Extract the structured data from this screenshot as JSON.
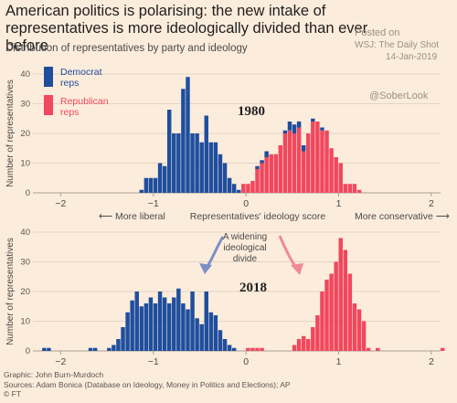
{
  "header": {
    "title": "American politics is polarising: the new intake of representatives is more ideologically divided than ever before",
    "subtitle": "Distribution of representatives by party and ideology"
  },
  "watermark": {
    "posted_lines": [
      "Posted on",
      "WSJ: The Daily Shot",
      "14-Jan-2019"
    ],
    "handle": "@SoberLook"
  },
  "footer": {
    "graphic": "Graphic: John Burn-Murdoch",
    "sources": "Sources: Adam Bonica (Database on Ideology, Money in Politics and Elections); AP",
    "credit": "© FT"
  },
  "colors": {
    "democrat": "#1f4e9e",
    "republican": "#f0485e",
    "background": "#fcecdb"
  },
  "chart_data": [
    {
      "type": "bar",
      "subtype": "stacked-histogram",
      "label": "1980",
      "ylabel": "Number of representatives",
      "xlabel": "Representatives' ideology score",
      "left_annotation": "More liberal",
      "right_annotation": "More conservative",
      "legend": [
        "Democrat reps",
        "Republican reps"
      ],
      "legend_position": "top-left",
      "xlim": [
        -2.3,
        2.1
      ],
      "ylim": [
        0,
        40
      ],
      "xticks": [
        -2,
        -1,
        0,
        1,
        2
      ],
      "yticks": [
        0,
        10,
        20,
        30,
        40
      ],
      "bin_width": 0.05,
      "bins_start": -1.15,
      "series": [
        {
          "name": "Democrat reps",
          "values": [
            1,
            5,
            5,
            5,
            10,
            9,
            28,
            20,
            20,
            35,
            39,
            20,
            20,
            17,
            26,
            17,
            17,
            13,
            10,
            5,
            3,
            1,
            0,
            0,
            0,
            1,
            1,
            2,
            0,
            0,
            0,
            1,
            3,
            3,
            2,
            2,
            0,
            1,
            0,
            1,
            0,
            0,
            0,
            0,
            0,
            0,
            0,
            0,
            0
          ]
        },
        {
          "name": "Republican reps",
          "values": [
            0,
            0,
            0,
            0,
            0,
            0,
            0,
            0,
            0,
            0,
            0,
            0,
            0,
            0,
            0,
            0,
            0,
            0,
            0,
            0,
            0,
            0,
            3,
            3,
            4,
            8,
            10,
            12,
            13,
            13,
            16,
            20,
            21,
            20,
            22,
            14,
            20,
            24,
            24,
            21,
            21,
            15,
            12,
            10,
            3,
            3,
            3,
            1,
            0
          ]
        }
      ]
    },
    {
      "type": "bar",
      "subtype": "stacked-histogram",
      "label": "2018",
      "ylabel": "Number of representatives",
      "annotation": "A widening ideological divide",
      "xlim": [
        -2.3,
        2.1
      ],
      "ylim": [
        0,
        40
      ],
      "xticks": [
        -2,
        -1,
        0,
        1,
        2
      ],
      "yticks": [
        0,
        10,
        20,
        30,
        40
      ],
      "bin_width": 0.05,
      "bins_start": -2.2,
      "series": [
        {
          "name": "Democrat reps",
          "values": [
            1,
            1,
            0,
            0,
            0,
            0,
            0,
            0,
            0,
            0,
            1,
            1,
            0,
            0,
            1,
            2,
            4,
            8,
            13,
            17,
            20,
            15,
            16,
            18,
            16,
            20,
            18,
            16,
            18,
            21,
            16,
            14,
            20,
            11,
            9,
            20,
            13,
            12,
            7,
            4,
            2,
            1,
            0,
            0,
            0,
            0,
            0,
            0,
            0,
            0,
            0,
            0,
            0,
            0,
            0,
            0,
            0,
            0,
            0,
            0,
            0,
            0,
            0,
            0,
            0,
            0,
            0,
            0,
            0,
            0,
            0,
            0,
            0,
            0,
            0,
            0,
            0,
            0,
            0,
            0,
            0,
            0,
            0,
            0,
            0,
            0,
            0
          ]
        },
        {
          "name": "Republican reps",
          "values": [
            0,
            0,
            0,
            0,
            0,
            0,
            0,
            0,
            0,
            0,
            0,
            0,
            0,
            0,
            0,
            0,
            0,
            0,
            0,
            0,
            0,
            0,
            0,
            0,
            0,
            0,
            0,
            0,
            0,
            0,
            0,
            0,
            0,
            0,
            0,
            0,
            0,
            0,
            0,
            0,
            0,
            0,
            0,
            0,
            1,
            1,
            1,
            1,
            0,
            0,
            0,
            0,
            0,
            0,
            2,
            4,
            5,
            4,
            8,
            12,
            20,
            24,
            26,
            30,
            38,
            34,
            26,
            16,
            14,
            10,
            1,
            0,
            1,
            0,
            0,
            0,
            0,
            0,
            0,
            0,
            0,
            0,
            0,
            0,
            0,
            0,
            1
          ]
        }
      ]
    }
  ]
}
